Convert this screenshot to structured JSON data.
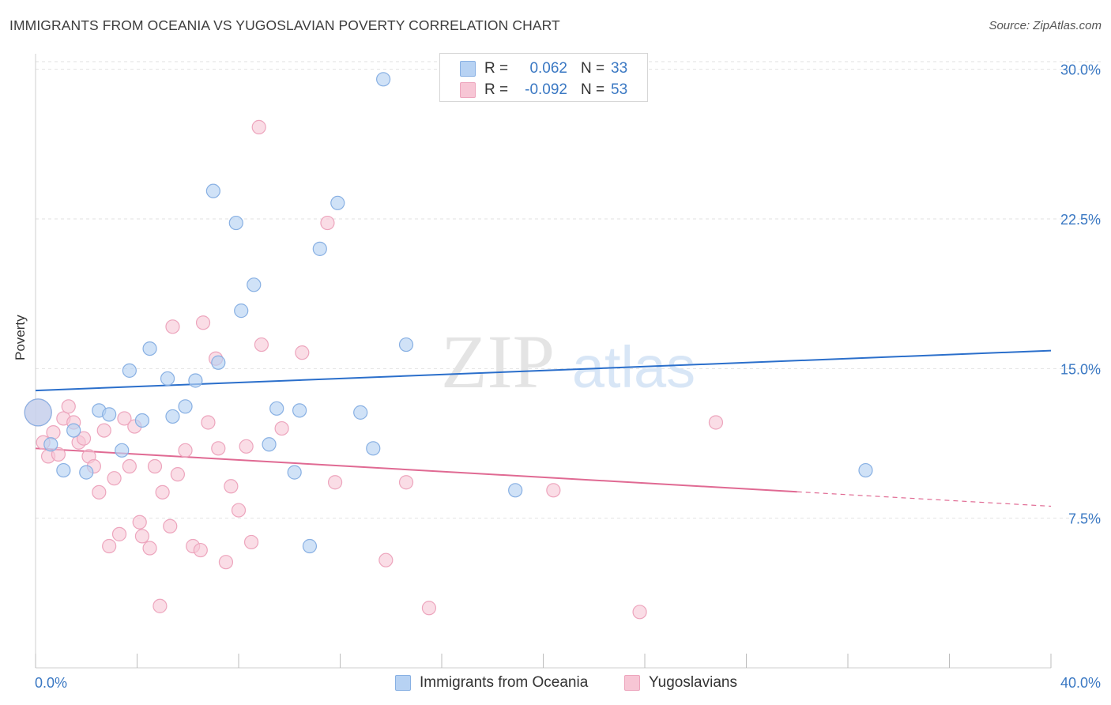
{
  "title": "IMMIGRANTS FROM OCEANIA VS YUGOSLAVIAN POVERTY CORRELATION CHART",
  "source": "Source: ZipAtlas.com",
  "watermark": {
    "zip": "ZIP",
    "atlas": "atlas"
  },
  "legend": {
    "blue": {
      "r_label": "R =",
      "r_value": "0.062",
      "n_label": "N =",
      "n_value": "33"
    },
    "pink": {
      "r_label": "R =",
      "r_value": "-0.092",
      "n_label": "N =",
      "n_value": "53"
    }
  },
  "colors": {
    "blue_fill": "#b7d2f3",
    "blue_stroke": "#88b0e3",
    "blue_line": "#2b6fcb",
    "pink_fill": "#f7c6d5",
    "pink_stroke": "#eda5bd",
    "pink_line": "#e06a93",
    "grid": "#e2e2e2",
    "tick_text": "#3a78c3"
  },
  "chart_data": {
    "type": "scatter",
    "title": "IMMIGRANTS FROM OCEANIA VS YUGOSLAVIAN POVERTY CORRELATION CHART",
    "xlabel": "",
    "ylabel": "Poverty",
    "xlim": [
      0,
      40
    ],
    "ylim": [
      0,
      30.7
    ],
    "x_tick_labels": {
      "left": "0.0%",
      "right": "40.0%"
    },
    "y_ticks": [
      {
        "value": 7.5,
        "label": "7.5%"
      },
      {
        "value": 15.0,
        "label": "15.0%"
      },
      {
        "value": 22.5,
        "label": "22.5%"
      },
      {
        "value": 30.0,
        "label": "30.0%"
      }
    ],
    "series": [
      {
        "name": "Immigrants from Oceania",
        "color": "blue",
        "r": 0.062,
        "n": 33,
        "trend": {
          "x0": 0.0,
          "y0": 13.9,
          "x1": 40.0,
          "y1": 15.9,
          "dashed_from": null
        },
        "points": [
          {
            "x": 0.1,
            "y": 12.8,
            "big": true
          },
          {
            "x": 0.6,
            "y": 11.2
          },
          {
            "x": 1.1,
            "y": 9.9
          },
          {
            "x": 1.5,
            "y": 11.9
          },
          {
            "x": 2.0,
            "y": 9.8
          },
          {
            "x": 2.5,
            "y": 12.9
          },
          {
            "x": 2.9,
            "y": 12.7
          },
          {
            "x": 3.4,
            "y": 10.9
          },
          {
            "x": 3.7,
            "y": 14.9
          },
          {
            "x": 4.2,
            "y": 12.4
          },
          {
            "x": 4.5,
            "y": 16.0
          },
          {
            "x": 5.2,
            "y": 14.5
          },
          {
            "x": 5.4,
            "y": 12.6
          },
          {
            "x": 5.9,
            "y": 13.1
          },
          {
            "x": 6.3,
            "y": 14.4
          },
          {
            "x": 7.0,
            "y": 23.9
          },
          {
            "x": 7.2,
            "y": 15.3
          },
          {
            "x": 7.9,
            "y": 22.3
          },
          {
            "x": 8.1,
            "y": 17.9
          },
          {
            "x": 8.6,
            "y": 19.2
          },
          {
            "x": 9.2,
            "y": 11.2
          },
          {
            "x": 9.5,
            "y": 13.0
          },
          {
            "x": 10.2,
            "y": 9.8
          },
          {
            "x": 10.4,
            "y": 12.9
          },
          {
            "x": 10.8,
            "y": 6.1
          },
          {
            "x": 11.2,
            "y": 21.0
          },
          {
            "x": 11.9,
            "y": 23.3
          },
          {
            "x": 12.8,
            "y": 12.8
          },
          {
            "x": 13.3,
            "y": 11.0
          },
          {
            "x": 13.7,
            "y": 29.5
          },
          {
            "x": 14.6,
            "y": 16.2
          },
          {
            "x": 18.9,
            "y": 8.9
          },
          {
            "x": 32.7,
            "y": 9.9
          }
        ]
      },
      {
        "name": "Yugoslavians",
        "color": "pink",
        "r": -0.092,
        "n": 53,
        "trend": {
          "x0": 0.0,
          "y0": 11.0,
          "x1": 40.0,
          "y1": 8.1,
          "dashed_from": 30.0
        },
        "points": [
          {
            "x": 0.1,
            "y": 12.8,
            "big": true
          },
          {
            "x": 0.3,
            "y": 11.3
          },
          {
            "x": 0.5,
            "y": 10.6
          },
          {
            "x": 0.7,
            "y": 11.8
          },
          {
            "x": 0.9,
            "y": 10.7
          },
          {
            "x": 1.1,
            "y": 12.5
          },
          {
            "x": 1.3,
            "y": 13.1
          },
          {
            "x": 1.5,
            "y": 12.3
          },
          {
            "x": 1.7,
            "y": 11.3
          },
          {
            "x": 1.9,
            "y": 11.5
          },
          {
            "x": 2.1,
            "y": 10.6
          },
          {
            "x": 2.3,
            "y": 10.1
          },
          {
            "x": 2.5,
            "y": 8.8
          },
          {
            "x": 2.7,
            "y": 11.9
          },
          {
            "x": 2.9,
            "y": 6.1
          },
          {
            "x": 3.1,
            "y": 9.5
          },
          {
            "x": 3.3,
            "y": 6.7
          },
          {
            "x": 3.5,
            "y": 12.5
          },
          {
            "x": 3.7,
            "y": 10.1
          },
          {
            "x": 3.9,
            "y": 12.1
          },
          {
            "x": 4.1,
            "y": 7.3
          },
          {
            "x": 4.2,
            "y": 6.6
          },
          {
            "x": 4.5,
            "y": 6.0
          },
          {
            "x": 4.7,
            "y": 10.1
          },
          {
            "x": 4.9,
            "y": 3.1
          },
          {
            "x": 5.0,
            "y": 8.8
          },
          {
            "x": 5.3,
            "y": 7.1
          },
          {
            "x": 5.4,
            "y": 17.1
          },
          {
            "x": 5.6,
            "y": 9.7
          },
          {
            "x": 5.9,
            "y": 10.9
          },
          {
            "x": 6.2,
            "y": 6.1
          },
          {
            "x": 6.5,
            "y": 5.9
          },
          {
            "x": 6.6,
            "y": 17.3
          },
          {
            "x": 6.8,
            "y": 12.3
          },
          {
            "x": 7.1,
            "y": 15.5
          },
          {
            "x": 7.2,
            "y": 11.0
          },
          {
            "x": 7.5,
            "y": 5.3
          },
          {
            "x": 7.7,
            "y": 9.1
          },
          {
            "x": 8.0,
            "y": 7.9
          },
          {
            "x": 8.3,
            "y": 11.1
          },
          {
            "x": 8.5,
            "y": 6.3
          },
          {
            "x": 8.9,
            "y": 16.2
          },
          {
            "x": 8.8,
            "y": 27.1
          },
          {
            "x": 9.7,
            "y": 12.0
          },
          {
            "x": 10.5,
            "y": 15.8
          },
          {
            "x": 11.5,
            "y": 22.3
          },
          {
            "x": 11.8,
            "y": 9.3
          },
          {
            "x": 13.8,
            "y": 5.4
          },
          {
            "x": 14.6,
            "y": 9.3
          },
          {
            "x": 15.5,
            "y": 3.0
          },
          {
            "x": 20.4,
            "y": 8.9
          },
          {
            "x": 23.8,
            "y": 2.8
          },
          {
            "x": 26.8,
            "y": 12.3
          }
        ]
      }
    ]
  },
  "bottom_legend": {
    "blue_label": "Immigrants from Oceania",
    "pink_label": "Yugoslavians"
  }
}
